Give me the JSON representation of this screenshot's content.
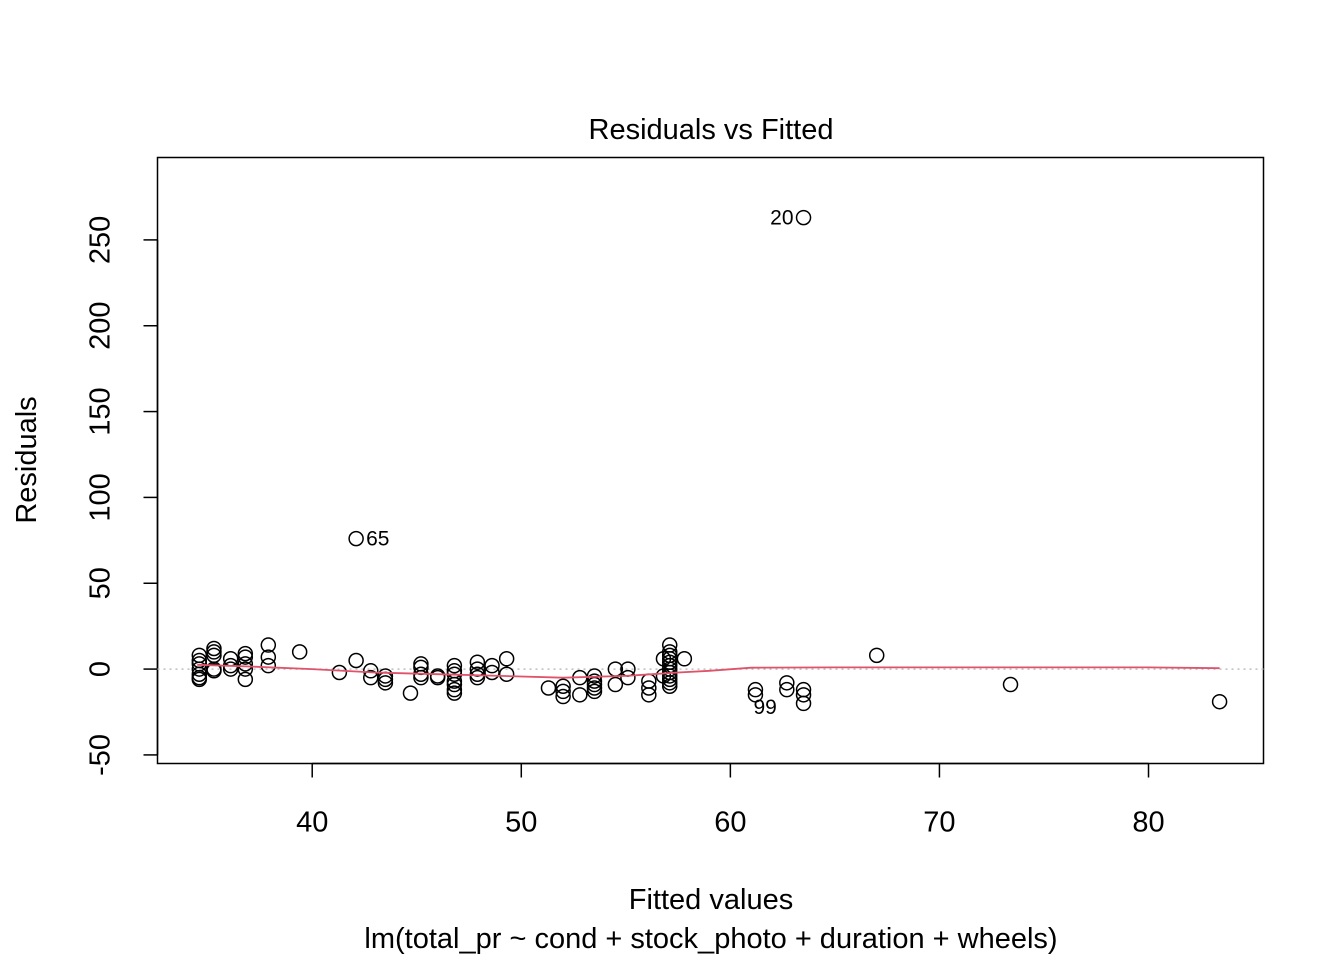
{
  "chart_data": {
    "type": "scatter",
    "title": "Residuals vs Fitted",
    "xlabel": "Fitted values",
    "subtitle": "lm(total_pr ~ cond + stock_photo + duration + wheels)",
    "ylabel": "Residuals",
    "xlim": [
      32.6,
      85.5
    ],
    "ylim": [
      -55,
      298
    ],
    "x_ticks": [
      40,
      50,
      60,
      70,
      80
    ],
    "y_ticks": [
      -50,
      0,
      50,
      100,
      150,
      200,
      250
    ],
    "reference_line": {
      "y": 0,
      "color": "#bebebe",
      "style": "dotted"
    },
    "smoother": {
      "color": "#DF536B",
      "points": [
        [
          34.5,
          2.5
        ],
        [
          37,
          1.5
        ],
        [
          40,
          0
        ],
        [
          43,
          -2
        ],
        [
          46,
          -3
        ],
        [
          49,
          -4
        ],
        [
          52,
          -5
        ],
        [
          55,
          -4
        ],
        [
          57.5,
          -2
        ],
        [
          59,
          -1
        ],
        [
          61,
          0.8
        ],
        [
          65,
          1
        ],
        [
          70,
          1
        ],
        [
          75,
          1
        ],
        [
          80,
          1
        ],
        [
          83.4,
          0.5
        ]
      ]
    },
    "point_labels": [
      {
        "text": "20",
        "x": 63.5,
        "y": 263,
        "side": "left"
      },
      {
        "text": "65",
        "x": 42.1,
        "y": 76,
        "side": "right"
      },
      {
        "text": "99",
        "x": 62.7,
        "y": -22,
        "side": "left"
      }
    ],
    "points": [
      [
        34.6,
        8
      ],
      [
        34.6,
        5
      ],
      [
        34.6,
        3
      ],
      [
        34.6,
        -3
      ],
      [
        34.6,
        -5
      ],
      [
        34.6,
        -6
      ],
      [
        34.6,
        0
      ],
      [
        35.3,
        12
      ],
      [
        35.3,
        10
      ],
      [
        35.3,
        8
      ],
      [
        35.3,
        0
      ],
      [
        35.3,
        -1
      ],
      [
        36.1,
        6
      ],
      [
        36.1,
        2
      ],
      [
        36.1,
        0
      ],
      [
        36.8,
        9
      ],
      [
        36.8,
        7
      ],
      [
        36.8,
        3
      ],
      [
        36.8,
        0
      ],
      [
        36.8,
        -6
      ],
      [
        37.9,
        14
      ],
      [
        37.9,
        7
      ],
      [
        37.9,
        2
      ],
      [
        39.4,
        10
      ],
      [
        41.3,
        -2
      ],
      [
        42.1,
        76
      ],
      [
        42.1,
        5
      ],
      [
        42.8,
        -1
      ],
      [
        42.8,
        -5
      ],
      [
        43.5,
        -4
      ],
      [
        43.5,
        -6
      ],
      [
        43.5,
        -8
      ],
      [
        44.7,
        -14
      ],
      [
        45.2,
        3
      ],
      [
        45.2,
        1
      ],
      [
        45.2,
        -3
      ],
      [
        45.2,
        -5
      ],
      [
        46.0,
        -4
      ],
      [
        46.0,
        -5
      ],
      [
        46.8,
        2
      ],
      [
        46.8,
        -1
      ],
      [
        46.8,
        -3
      ],
      [
        46.8,
        -7
      ],
      [
        46.8,
        -9
      ],
      [
        46.8,
        -12
      ],
      [
        46.8,
        -14
      ],
      [
        47.9,
        4
      ],
      [
        47.9,
        0
      ],
      [
        47.9,
        -3
      ],
      [
        47.9,
        -5
      ],
      [
        48.6,
        2
      ],
      [
        48.6,
        -2
      ],
      [
        49.3,
        6
      ],
      [
        49.3,
        -3
      ],
      [
        51.3,
        -11
      ],
      [
        52.0,
        -10
      ],
      [
        52.0,
        -13
      ],
      [
        52.0,
        -16
      ],
      [
        52.8,
        -5
      ],
      [
        52.8,
        -15
      ],
      [
        53.5,
        -4
      ],
      [
        53.5,
        -7
      ],
      [
        53.5,
        -9
      ],
      [
        53.5,
        -11
      ],
      [
        53.5,
        -13
      ],
      [
        54.5,
        0
      ],
      [
        54.5,
        -9
      ],
      [
        55.1,
        0
      ],
      [
        55.1,
        -5
      ],
      [
        56.1,
        -7
      ],
      [
        56.1,
        -11
      ],
      [
        56.1,
        -15
      ],
      [
        56.8,
        6
      ],
      [
        56.8,
        -4
      ],
      [
        57.1,
        14
      ],
      [
        57.1,
        10
      ],
      [
        57.1,
        8
      ],
      [
        57.1,
        6
      ],
      [
        57.1,
        4
      ],
      [
        57.1,
        2
      ],
      [
        57.1,
        0
      ],
      [
        57.1,
        -2
      ],
      [
        57.1,
        -4
      ],
      [
        57.1,
        -6
      ],
      [
        57.1,
        -8
      ],
      [
        57.1,
        -10
      ],
      [
        57.8,
        6
      ],
      [
        61.2,
        -12
      ],
      [
        61.2,
        -15
      ],
      [
        62.7,
        -8
      ],
      [
        62.7,
        -12
      ],
      [
        63.5,
        263
      ],
      [
        63.5,
        -12
      ],
      [
        63.5,
        -15
      ],
      [
        63.5,
        -20
      ],
      [
        67.0,
        8
      ],
      [
        73.4,
        -9
      ],
      [
        83.4,
        -19
      ]
    ]
  }
}
